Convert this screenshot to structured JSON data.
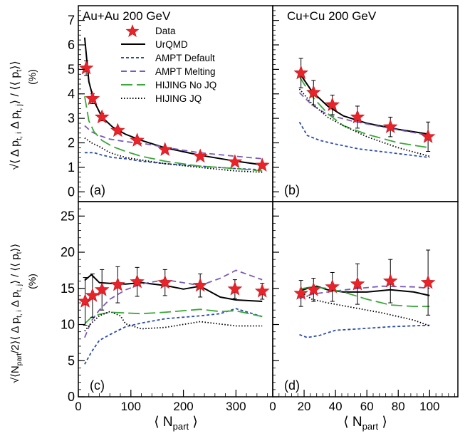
{
  "chart_data": {
    "type": "scatter",
    "legend": {
      "placement": "top-left of panel (a)",
      "entries": [
        {
          "key": "data",
          "label": "Data",
          "color": "#e8232a",
          "style": "star"
        },
        {
          "key": "urqmd",
          "label": "UrQMD",
          "color": "#000000",
          "style": "solid"
        },
        {
          "key": "ampt_default",
          "label": "AMPT Default",
          "color": "#2b4ca8",
          "style": "short-dash"
        },
        {
          "key": "ampt_melting",
          "label": "AMPT Melting",
          "color": "#7a5bb8",
          "style": "dash"
        },
        {
          "key": "hijing_nojq",
          "label": "HIJING No JQ",
          "color": "#3aa83a",
          "style": "long-dash"
        },
        {
          "key": "hijing_jq",
          "label": "HIJING JQ",
          "color": "#000000",
          "style": "dot"
        }
      ]
    },
    "panels": [
      {
        "id": "a",
        "tag": "(a)",
        "system": "Au+Au 200 GeV",
        "ylabel": "sqrt(<Δpt,i Δpt,j>)/<<pt>> (%)",
        "ylabel_unit": "(%)",
        "xlim": [
          0,
          370
        ],
        "ylim": [
          -0.4,
          7.6
        ],
        "yticks": [
          0,
          1,
          2,
          3,
          4,
          5,
          6,
          7
        ],
        "data": {
          "x": [
            15,
            27,
            45,
            75,
            112,
            165,
            232,
            298,
            350
          ],
          "y": [
            5.05,
            3.8,
            3.05,
            2.5,
            2.1,
            1.72,
            1.45,
            1.22,
            1.08
          ],
          "err": [
            0.3,
            0.2,
            0.15,
            0.12,
            0.1,
            0.08,
            0.07,
            0.06,
            0.05
          ]
        },
        "series": [
          {
            "key": "urqmd",
            "x": [
              12,
              20,
              30,
              45,
              65,
              90,
              120,
              165,
              230,
              300,
              350
            ],
            "y": [
              6.3,
              4.5,
              3.7,
              3.05,
              2.65,
              2.35,
              2.1,
              1.8,
              1.5,
              1.25,
              1.1
            ]
          },
          {
            "key": "ampt_default",
            "x": [
              12,
              30,
              45,
              65,
              90,
              120,
              165,
              230,
              300,
              350
            ],
            "y": [
              1.6,
              1.6,
              1.5,
              1.4,
              1.35,
              1.25,
              1.15,
              1.05,
              0.95,
              0.9
            ]
          },
          {
            "key": "ampt_melting",
            "x": [
              12,
              25,
              40,
              60,
              90,
              130,
              170,
              230,
              300,
              350
            ],
            "y": [
              2.7,
              2.45,
              2.3,
              2.15,
              2.05,
              1.95,
              1.8,
              1.6,
              1.45,
              1.35
            ]
          },
          {
            "key": "hijing_nojq",
            "x": [
              12,
              20,
              30,
              45,
              65,
              90,
              120,
              165,
              230,
              300,
              350
            ],
            "y": [
              3.9,
              2.9,
              2.45,
              2.1,
              1.85,
              1.65,
              1.45,
              1.25,
              1.05,
              0.95,
              0.85
            ]
          },
          {
            "key": "hijing_jq",
            "x": [
              12,
              25,
              40,
              60,
              90,
              120,
              165,
              230,
              300,
              350
            ],
            "y": [
              2.2,
              2.0,
              1.85,
              1.6,
              1.4,
              1.3,
              1.15,
              1.0,
              0.85,
              0.8
            ]
          }
        ]
      },
      {
        "id": "b",
        "tag": "(b)",
        "system": "Cu+Cu 200 GeV",
        "xlim": [
          0,
          118
        ],
        "ylim": [
          -0.4,
          7.6
        ],
        "data": {
          "x": [
            18,
            26,
            38,
            54,
            75,
            99
          ],
          "y": [
            4.85,
            4.05,
            3.55,
            3.05,
            2.65,
            2.25
          ],
          "err": [
            0.6,
            0.5,
            0.4,
            0.45,
            0.4,
            0.6
          ]
        },
        "series": [
          {
            "key": "urqmd",
            "x": [
              17,
              25,
              35,
              45,
              60,
              80,
              100
            ],
            "y": [
              4.85,
              4.1,
              3.5,
              3.1,
              2.8,
              2.55,
              2.35
            ]
          },
          {
            "key": "ampt_default",
            "x": [
              17,
              22,
              30,
              40,
              55,
              75,
              100
            ],
            "y": [
              2.85,
              2.3,
              2.1,
              1.95,
              1.75,
              1.6,
              1.4
            ]
          },
          {
            "key": "ampt_melting",
            "x": [
              17,
              25,
              35,
              50,
              70,
              100
            ],
            "y": [
              4.05,
              3.55,
              3.15,
              2.9,
              2.65,
              2.3
            ]
          },
          {
            "key": "hijing_nojq",
            "x": [
              17,
              25,
              35,
              45,
              60,
              80,
              100
            ],
            "y": [
              4.7,
              3.9,
              3.2,
              2.7,
              2.35,
              2.0,
              1.8
            ]
          },
          {
            "key": "hijing_jq",
            "x": [
              17,
              25,
              35,
              45,
              60,
              80,
              100
            ],
            "y": [
              4.2,
              3.6,
              3.05,
              2.7,
              2.25,
              1.8,
              1.45
            ]
          }
        ]
      },
      {
        "id": "c",
        "tag": "(c)",
        "ylabel": "sqrt(Npart/2 <Δpt,i Δpt,j>)/<<pt>> (%)",
        "ylabel_unit": "(%)",
        "xlabel": "⟨ Npart ⟩",
        "xlim": [
          0,
          370
        ],
        "ylim": [
          0,
          27
        ],
        "yticks": [
          0,
          5,
          10,
          15,
          20,
          25
        ],
        "xticks": [
          0,
          100,
          200,
          300
        ],
        "data": {
          "x": [
            13,
            27,
            45,
            75,
            112,
            165,
            232,
            298,
            350
          ],
          "y": [
            13.2,
            14,
            14.8,
            15.5,
            15.9,
            15.8,
            15.4,
            14.9,
            14.6
          ],
          "err": [
            3.3,
            3.0,
            2.8,
            2.5,
            2.0,
            1.8,
            1.6,
            1.3,
            1.1
          ]
        },
        "series": [
          {
            "key": "urqmd",
            "x": [
              12,
              25,
              40,
              60,
              90,
              120,
              165,
              200,
              232,
              270,
              300,
              350
            ],
            "y": [
              16.1,
              16.9,
              15.8,
              15.7,
              15.6,
              15.8,
              15.4,
              14.9,
              15.3,
              13.8,
              13.4,
              13.2
            ]
          },
          {
            "key": "ampt_default",
            "x": [
              12,
              25,
              40,
              60,
              90,
              120,
              165,
              232,
              270,
              300,
              350
            ],
            "y": [
              4.5,
              6.2,
              7.8,
              8.6,
              9.7,
              10.2,
              10.8,
              11.2,
              11.5,
              12.2,
              11.1
            ]
          },
          {
            "key": "ampt_melting",
            "x": [
              12,
              25,
              40,
              60,
              90,
              120,
              165,
              232,
              270,
              300,
              350
            ],
            "y": [
              8.2,
              10.5,
              12.0,
              13.5,
              14.8,
              15.6,
              16.2,
              15.4,
              16.4,
              17.5,
              16.2
            ]
          },
          {
            "key": "hijing_nojq",
            "x": [
              12,
              25,
              40,
              60,
              90,
              120,
              165,
              232,
              270,
              300,
              350
            ],
            "y": [
              10.1,
              11.0,
              11.4,
              11.7,
              11.6,
              11.5,
              11.7,
              12.1,
              11.8,
              11.9,
              11.1
            ]
          },
          {
            "key": "hijing_jq",
            "x": [
              12,
              25,
              40,
              60,
              80,
              90,
              120,
              165,
              232,
              300,
              350
            ],
            "y": [
              9.1,
              10.2,
              11.2,
              11.8,
              11.2,
              10.1,
              9.4,
              9.6,
              10.4,
              9.8,
              9.8
            ]
          }
        ]
      },
      {
        "id": "d",
        "tag": "(d)",
        "xlabel": "⟨ Npart ⟩",
        "xlim": [
          0,
          118
        ],
        "ylim": [
          0,
          27
        ],
        "xticks": [
          0,
          20,
          40,
          60,
          80,
          100
        ],
        "data": {
          "x": [
            18,
            26,
            38,
            54,
            75,
            99
          ],
          "y": [
            14.3,
            14.8,
            15.2,
            15.6,
            16.0,
            15.8
          ],
          "err": [
            1.8,
            1.6,
            2.0,
            2.8,
            3.0,
            4.5
          ]
        },
        "series": [
          {
            "key": "urqmd",
            "x": [
              17,
              22,
              28,
              35,
              45,
              60,
              75,
              90,
              100
            ],
            "y": [
              14.6,
              15.0,
              15.3,
              14.8,
              14.5,
              14.5,
              14.8,
              14.5,
              14.0
            ]
          },
          {
            "key": "ampt_default",
            "x": [
              17,
              22,
              30,
              40,
              55,
              75,
              100
            ],
            "y": [
              8.6,
              8.2,
              8.5,
              9.2,
              9.4,
              9.7,
              9.9
            ]
          },
          {
            "key": "ampt_melting",
            "x": [
              17,
              25,
              35,
              50,
              70,
              90,
              100
            ],
            "y": [
              13.6,
              14.2,
              14.5,
              14.9,
              15.3,
              15.2,
              15.0
            ]
          },
          {
            "key": "hijing_nojq",
            "x": [
              17,
              25,
              35,
              45,
              60,
              75,
              90,
              100
            ],
            "y": [
              14.9,
              15.2,
              15.0,
              14.5,
              13.5,
              12.7,
              12.5,
              12.5
            ]
          },
          {
            "key": "hijing_jq",
            "x": [
              17,
              25,
              35,
              50,
              70,
              90,
              100
            ],
            "y": [
              14.6,
              13.5,
              13.0,
              12.4,
              11.6,
              10.6,
              9.8
            ]
          }
        ]
      }
    ]
  }
}
